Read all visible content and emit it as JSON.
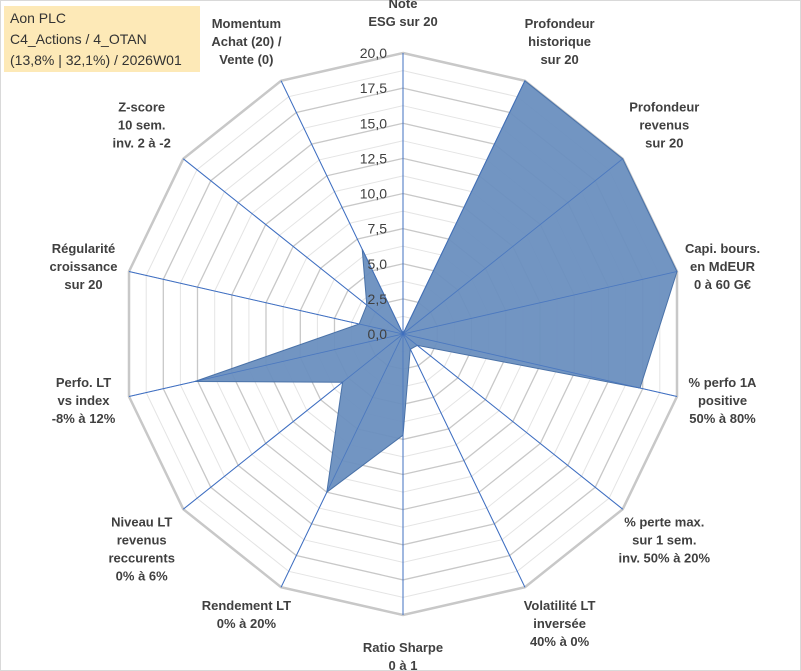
{
  "header": {
    "line1": "Aon PLC",
    "line2": "C4_Actions / 4_OTAN",
    "line3": "(13,8% | 32,1%) / 2026W01"
  },
  "chart_data": {
    "type": "radar",
    "title": "Aon PLC",
    "rlim": [
      0,
      20
    ],
    "r_ticks": [
      "0,0",
      "2,5",
      "5,0",
      "7,5",
      "10,0",
      "12,5",
      "15,0",
      "17,5",
      "20,0"
    ],
    "categories": [
      [
        "Note",
        "ESG sur 20"
      ],
      [
        "Profondeur",
        "historique",
        "sur 20"
      ],
      [
        "Profondeur",
        "revenus",
        "sur 20"
      ],
      [
        "Capi. bours.",
        "en MdEUR",
        "0 à 60 G€"
      ],
      [
        "% perfo 1A",
        "positive",
        "50% à 80%"
      ],
      [
        "% perte max.",
        "sur 1 sem.",
        "inv. 50% à 20%"
      ],
      [
        "Volatilité LT",
        "inversée",
        "40% à 0%"
      ],
      [
        "Ratio Sharpe",
        "0 à 1"
      ],
      [
        "Rendement LT",
        "0% à 20%"
      ],
      [
        "Niveau LT",
        "revenus",
        "reccurents",
        "0% à 6%"
      ],
      [
        "Perfo. LT",
        "vs index",
        "-8% à 12%"
      ],
      [
        "Régularité",
        "croissance",
        "sur 20"
      ],
      [
        "Z-score",
        "10 sem.",
        "inv. 2 à -2"
      ],
      [
        "Momentum",
        "Achat (20) /",
        "Vente (0)"
      ]
    ],
    "series": [
      {
        "name": "Aon PLC",
        "color": "#6a8fbf",
        "values": [
          0,
          20,
          20,
          20,
          17.3,
          1.3,
          1.2,
          7.2,
          12.5,
          5.5,
          15.2,
          3.2,
          3.3,
          6.7
        ]
      }
    ]
  }
}
